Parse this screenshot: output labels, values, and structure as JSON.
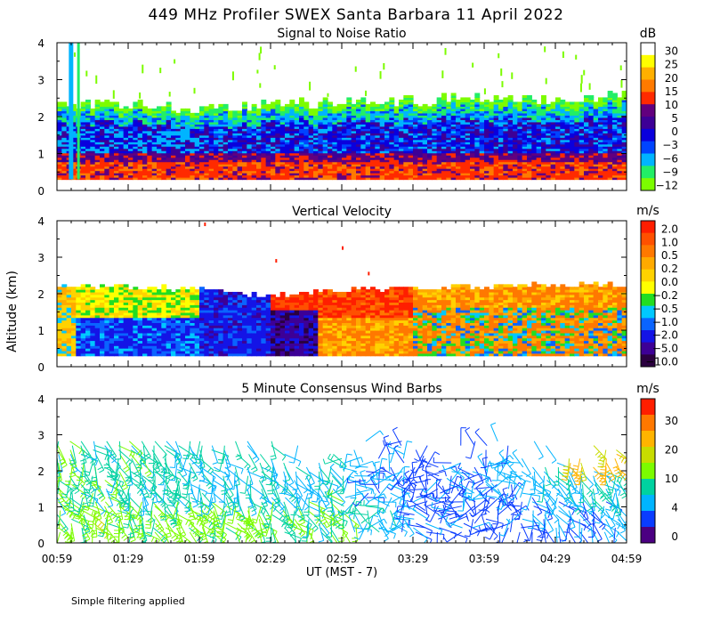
{
  "title": "449 MHz Profiler SWEX Santa Barbara 11 April 2022",
  "footnote": "Simple filtering applied",
  "shared_x_axis": {
    "ticks": [
      "00:59",
      "01:29",
      "01:59",
      "02:29",
      "02:59",
      "03:29",
      "03:59",
      "04:29",
      "04:59"
    ],
    "label": "UT  (MST - 7)",
    "range_minutes_after_0059": [
      0,
      240
    ]
  },
  "ylabel": "Altitude (km)",
  "colors": {
    "snr": [
      "#7cfc00",
      "#22ee66",
      "#00b4ff",
      "#0044ff",
      "#0a00dd",
      "#3d0096",
      "#62007e",
      "#ff2a00",
      "#ff7a00",
      "#ffb000",
      "#ffff00",
      "#ffffff"
    ],
    "vv": [
      "#2b0040",
      "#3d0096",
      "#1414e6",
      "#0a64ff",
      "#00c8ff",
      "#22dd22",
      "#ffff00",
      "#ffd200",
      "#ffaa00",
      "#ff7800",
      "#ff5000",
      "#ff1e00"
    ],
    "wind": [
      "#4b0082",
      "#0a3cff",
      "#00b4ff",
      "#00d2a0",
      "#7cfc00",
      "#c8dc00",
      "#ffb400",
      "#ff7800",
      "#ff1e00"
    ]
  },
  "chart_data": [
    {
      "type": "heatmap",
      "title": "Signal to Noise Ratio",
      "units": "dB",
      "colorbar_labels": [
        "30",
        "25",
        "20",
        "15",
        "10",
        "5",
        "0",
        "−3",
        "−6",
        "−9",
        "−12"
      ],
      "color_levels": [
        -12,
        -9,
        -6,
        -3,
        0,
        5,
        10,
        15,
        20,
        25,
        30
      ],
      "ylim": [
        0,
        4
      ],
      "yticks": [
        0,
        1,
        2,
        3,
        4
      ],
      "xlim": [
        0,
        240
      ],
      "data_bottom_km": 0.3,
      "echo_top_km": {
        "t": [
          0,
          30,
          60,
          90,
          120,
          150,
          180,
          210,
          240
        ],
        "km": [
          2.3,
          2.3,
          2.2,
          2.3,
          2.4,
          2.4,
          2.5,
          2.4,
          2.6
        ]
      }
    },
    {
      "type": "heatmap",
      "title": "Vertical Velocity",
      "units": "m/s",
      "colorbar_labels": [
        "2.0",
        "1.0",
        "0.5",
        "0.2",
        "0.0",
        "−0.2",
        "−0.5",
        "−1.0",
        "−2.0",
        "−5.0",
        "−10.0"
      ],
      "color_levels": [
        -10,
        -5,
        -2,
        -1,
        -0.5,
        -0.2,
        0,
        0.2,
        0.5,
        1,
        2
      ],
      "ylim": [
        0,
        4
      ],
      "yticks": [
        0,
        1,
        2,
        3,
        4
      ],
      "xlim": [
        0,
        240
      ],
      "data_bottom_km": 0.3,
      "profile_top_km": {
        "t": [
          0,
          60,
          90,
          120,
          150,
          200,
          240
        ],
        "km": [
          2.2,
          2.1,
          1.9,
          2.1,
          2.1,
          2.2,
          2.2
        ]
      }
    },
    {
      "type": "scatter",
      "title": "5 Minute Consensus Wind Barbs",
      "units": "m/s",
      "colorbar_labels": [
        "30",
        "20",
        "10",
        "4",
        "0"
      ],
      "speed_levels": [
        0,
        2,
        4,
        7,
        10,
        15,
        20,
        25,
        30
      ],
      "ylim": [
        0,
        4
      ],
      "yticks": [
        0,
        1,
        2,
        3,
        4
      ],
      "xlim": [
        0,
        240
      ],
      "speed_profile": {
        "t": [
          0,
          60,
          120,
          150,
          180,
          240
        ],
        "low_ms": [
          12,
          11,
          9,
          4,
          3,
          5
        ],
        "high_ms": [
          9,
          7,
          6,
          3,
          4,
          8
        ]
      }
    }
  ]
}
